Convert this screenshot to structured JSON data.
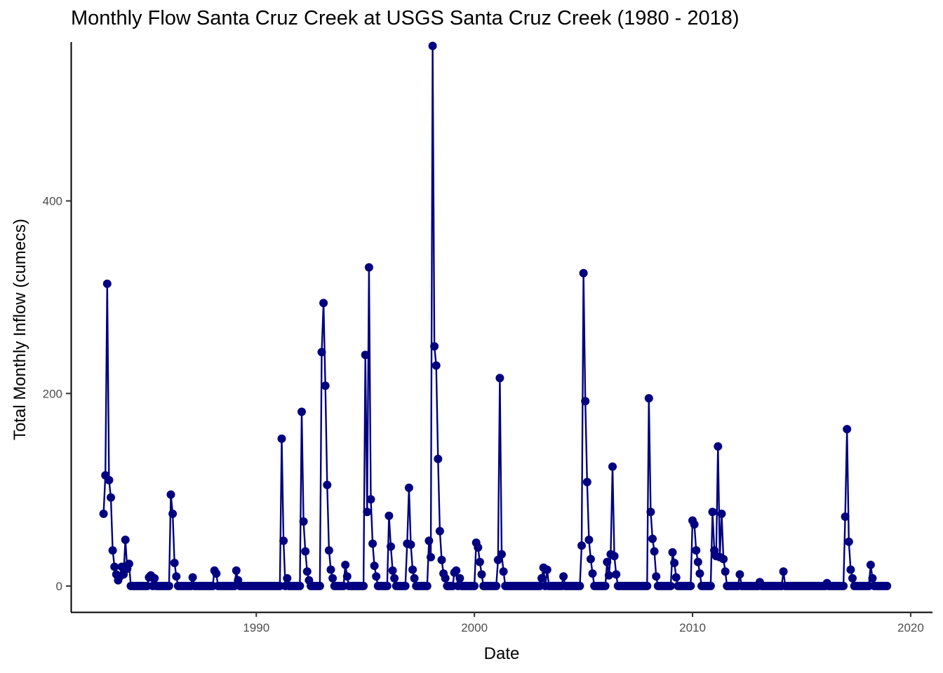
{
  "chart_data": {
    "type": "line",
    "title": "Monthly Flow Santa Cruz Creek at USGS Santa Cruz Creek (1980 - 2018)",
    "xlabel": "Date",
    "ylabel": "Total Monthly Inflow (cumecs)",
    "xlim": [
      1981.5,
      2021.0
    ],
    "ylim": [
      -27,
      565
    ],
    "x_ticks": [
      1990,
      2000,
      2010,
      2020
    ],
    "x_tick_labels": [
      "1990",
      "2000",
      "2010",
      "2020"
    ],
    "y_ticks": [
      0,
      200,
      400
    ],
    "y_tick_labels": [
      "0",
      "200",
      "400"
    ],
    "grid": false,
    "line_color": "#000080",
    "marker_color": "#000080",
    "peaks": [
      {
        "x": 1983.0,
        "y": 75
      },
      {
        "x": 1983.08,
        "y": 115
      },
      {
        "x": 1983.17,
        "y": 314
      },
      {
        "x": 1983.25,
        "y": 110
      },
      {
        "x": 1983.33,
        "y": 92
      },
      {
        "x": 1983.42,
        "y": 37
      },
      {
        "x": 1983.5,
        "y": 20
      },
      {
        "x": 1983.58,
        "y": 12
      },
      {
        "x": 1983.67,
        "y": 6
      },
      {
        "x": 1983.75,
        "y": 10
      },
      {
        "x": 1983.83,
        "y": 20
      },
      {
        "x": 1983.92,
        "y": 12
      },
      {
        "x": 1984.0,
        "y": 48
      },
      {
        "x": 1984.08,
        "y": 18
      },
      {
        "x": 1984.17,
        "y": 23
      },
      {
        "x": 1985.1,
        "y": 9
      },
      {
        "x": 1985.2,
        "y": 11
      },
      {
        "x": 1985.3,
        "y": 8
      },
      {
        "x": 1986.08,
        "y": 95
      },
      {
        "x": 1986.17,
        "y": 75
      },
      {
        "x": 1986.25,
        "y": 24
      },
      {
        "x": 1986.33,
        "y": 10
      },
      {
        "x": 1987.1,
        "y": 9
      },
      {
        "x": 1988.1,
        "y": 16
      },
      {
        "x": 1988.2,
        "y": 13
      },
      {
        "x": 1989.1,
        "y": 16
      },
      {
        "x": 1989.2,
        "y": 6
      },
      {
        "x": 1991.17,
        "y": 153
      },
      {
        "x": 1991.25,
        "y": 47
      },
      {
        "x": 1991.42,
        "y": 8
      },
      {
        "x": 1992.08,
        "y": 181
      },
      {
        "x": 1992.17,
        "y": 67
      },
      {
        "x": 1992.25,
        "y": 36
      },
      {
        "x": 1992.33,
        "y": 15
      },
      {
        "x": 1992.42,
        "y": 6
      },
      {
        "x": 1993.0,
        "y": 243
      },
      {
        "x": 1993.08,
        "y": 294
      },
      {
        "x": 1993.17,
        "y": 208
      },
      {
        "x": 1993.25,
        "y": 105
      },
      {
        "x": 1993.33,
        "y": 37
      },
      {
        "x": 1993.42,
        "y": 17
      },
      {
        "x": 1993.5,
        "y": 8
      },
      {
        "x": 1994.1,
        "y": 22
      },
      {
        "x": 1994.2,
        "y": 10
      },
      {
        "x": 1995.0,
        "y": 240
      },
      {
        "x": 1995.08,
        "y": 77
      },
      {
        "x": 1995.17,
        "y": 331
      },
      {
        "x": 1995.25,
        "y": 90
      },
      {
        "x": 1995.33,
        "y": 44
      },
      {
        "x": 1995.42,
        "y": 21
      },
      {
        "x": 1995.5,
        "y": 10
      },
      {
        "x": 1996.08,
        "y": 73
      },
      {
        "x": 1996.17,
        "y": 41
      },
      {
        "x": 1996.25,
        "y": 16
      },
      {
        "x": 1996.33,
        "y": 8
      },
      {
        "x": 1996.92,
        "y": 44
      },
      {
        "x": 1997.0,
        "y": 102
      },
      {
        "x": 1997.08,
        "y": 43
      },
      {
        "x": 1997.17,
        "y": 17
      },
      {
        "x": 1997.25,
        "y": 8
      },
      {
        "x": 1997.92,
        "y": 47
      },
      {
        "x": 1998.0,
        "y": 30
      },
      {
        "x": 1998.08,
        "y": 561
      },
      {
        "x": 1998.17,
        "y": 249
      },
      {
        "x": 1998.25,
        "y": 229
      },
      {
        "x": 1998.33,
        "y": 132
      },
      {
        "x": 1998.42,
        "y": 57
      },
      {
        "x": 1998.5,
        "y": 27
      },
      {
        "x": 1998.58,
        "y": 13
      },
      {
        "x": 1998.67,
        "y": 8
      },
      {
        "x": 1999.1,
        "y": 14
      },
      {
        "x": 1999.2,
        "y": 16
      },
      {
        "x": 1999.3,
        "y": 8
      },
      {
        "x": 2000.08,
        "y": 45
      },
      {
        "x": 2000.17,
        "y": 40
      },
      {
        "x": 2000.25,
        "y": 25
      },
      {
        "x": 2000.33,
        "y": 12
      },
      {
        "x": 2001.08,
        "y": 27
      },
      {
        "x": 2001.17,
        "y": 216
      },
      {
        "x": 2001.25,
        "y": 33
      },
      {
        "x": 2001.33,
        "y": 15
      },
      {
        "x": 2003.1,
        "y": 8
      },
      {
        "x": 2003.2,
        "y": 19
      },
      {
        "x": 2003.3,
        "y": 17
      },
      {
        "x": 2004.1,
        "y": 10
      },
      {
        "x": 2004.92,
        "y": 42
      },
      {
        "x": 2005.0,
        "y": 325
      },
      {
        "x": 2005.08,
        "y": 192
      },
      {
        "x": 2005.17,
        "y": 108
      },
      {
        "x": 2005.25,
        "y": 48
      },
      {
        "x": 2005.33,
        "y": 28
      },
      {
        "x": 2005.42,
        "y": 13
      },
      {
        "x": 2006.08,
        "y": 25
      },
      {
        "x": 2006.17,
        "y": 11
      },
      {
        "x": 2006.25,
        "y": 33
      },
      {
        "x": 2006.33,
        "y": 124
      },
      {
        "x": 2006.42,
        "y": 31
      },
      {
        "x": 2006.5,
        "y": 12
      },
      {
        "x": 2008.0,
        "y": 195
      },
      {
        "x": 2008.08,
        "y": 77
      },
      {
        "x": 2008.17,
        "y": 49
      },
      {
        "x": 2008.25,
        "y": 36
      },
      {
        "x": 2008.33,
        "y": 10
      },
      {
        "x": 2009.08,
        "y": 35
      },
      {
        "x": 2009.17,
        "y": 24
      },
      {
        "x": 2009.25,
        "y": 9
      },
      {
        "x": 2010.0,
        "y": 68
      },
      {
        "x": 2010.08,
        "y": 64
      },
      {
        "x": 2010.17,
        "y": 37
      },
      {
        "x": 2010.25,
        "y": 25
      },
      {
        "x": 2010.33,
        "y": 13
      },
      {
        "x": 2010.92,
        "y": 77
      },
      {
        "x": 2011.0,
        "y": 37
      },
      {
        "x": 2011.08,
        "y": 31
      },
      {
        "x": 2011.17,
        "y": 145
      },
      {
        "x": 2011.25,
        "y": 30
      },
      {
        "x": 2011.33,
        "y": 75
      },
      {
        "x": 2011.42,
        "y": 28
      },
      {
        "x": 2011.5,
        "y": 15
      },
      {
        "x": 2012.2,
        "y": 12
      },
      {
        "x": 2013.1,
        "y": 4
      },
      {
        "x": 2014.2,
        "y": 15
      },
      {
        "x": 2016.2,
        "y": 3
      },
      {
        "x": 2017.0,
        "y": 72
      },
      {
        "x": 2017.08,
        "y": 163
      },
      {
        "x": 2017.17,
        "y": 46
      },
      {
        "x": 2017.25,
        "y": 17
      },
      {
        "x": 2017.33,
        "y": 8
      },
      {
        "x": 2018.17,
        "y": 22
      },
      {
        "x": 2018.25,
        "y": 8
      }
    ]
  }
}
